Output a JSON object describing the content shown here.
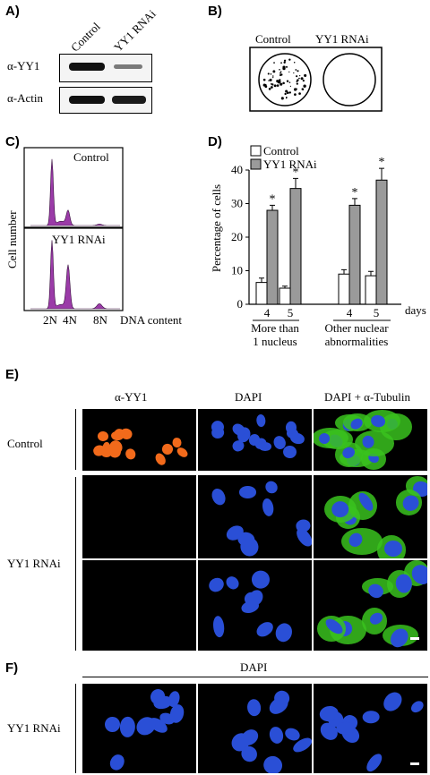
{
  "panels": {
    "a": {
      "label": "A)",
      "lanes": [
        "Control",
        "YY1 RNAi"
      ],
      "rows": [
        "α-YY1",
        "α-Actin"
      ]
    },
    "b": {
      "label": "B)",
      "lanes": [
        "Control",
        "YY1 RNAi"
      ]
    },
    "c": {
      "label": "C)",
      "ylabel": "Cell number",
      "top_label": "Control",
      "bottom_label": "YY1 RNAi",
      "xticks": [
        "2N",
        "4N",
        "8N"
      ],
      "xlabel": "DNA content",
      "fill_color": "#9b3ba8"
    },
    "d": {
      "label": "D)"
    },
    "e": {
      "label": "E)",
      "columns": [
        "α-YY1",
        "DAPI",
        "DAPI + α-Tubulin"
      ],
      "rows": [
        "Control",
        "YY1 RNAi"
      ]
    },
    "f": {
      "label": "F)",
      "header": "DAPI",
      "row": "YY1 RNAi"
    }
  },
  "colors": {
    "yy1": "#f26a1b",
    "dapi": "#2a4fd6",
    "tubulin": "#39c21e",
    "control_bar": "#ffffff",
    "rnai_bar": "#9a9a9a"
  },
  "chart_data": {
    "type": "bar",
    "categories": [
      "4",
      "5",
      "4",
      "5"
    ],
    "groups": [
      "More than 1 nucleus",
      "Other nuclear abnormalities"
    ],
    "xunit": "days",
    "ylabel": "Percentage of cells",
    "ylim": [
      0,
      40
    ],
    "yticks": [
      "0",
      "10",
      "20",
      "30",
      "40"
    ],
    "series": [
      {
        "name": "Control",
        "values": [
          6.5,
          4.8,
          9.0,
          8.5
        ],
        "errors": [
          1.3,
          0.6,
          1.3,
          1.3
        ]
      },
      {
        "name": "YY1 RNAi",
        "values": [
          28,
          34.5,
          29.5,
          37
        ],
        "errors": [
          1.5,
          3.0,
          2.0,
          3.5
        ]
      }
    ],
    "significance": [
      "*",
      "*",
      "*",
      "*"
    ],
    "legend": "top-left"
  }
}
